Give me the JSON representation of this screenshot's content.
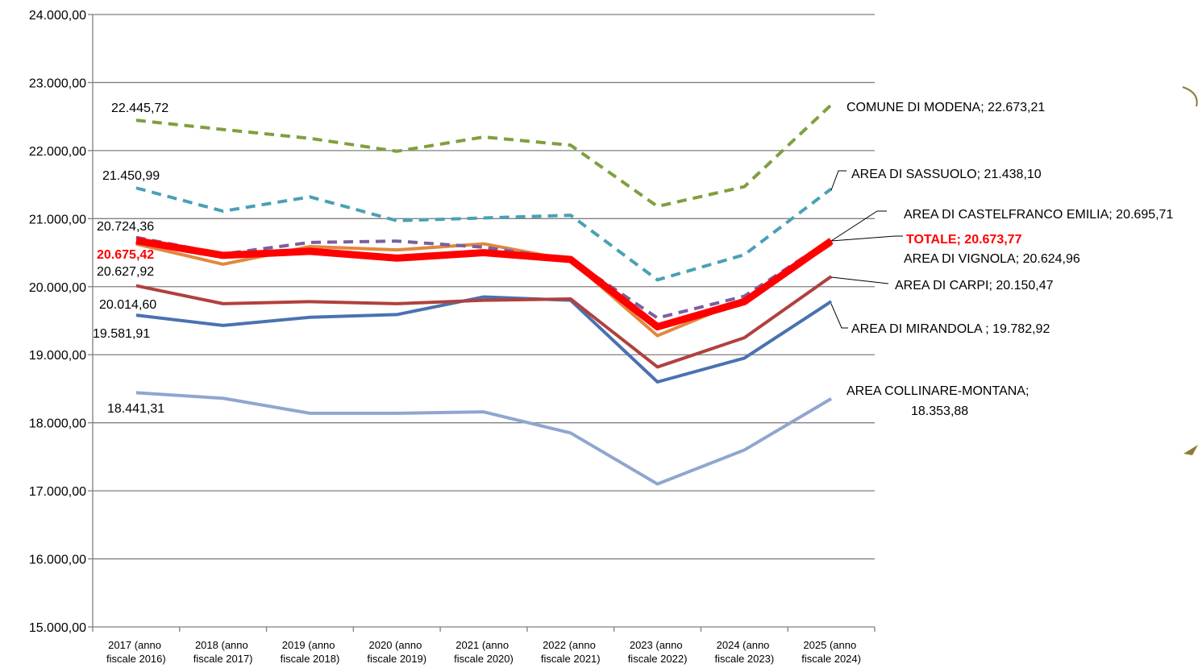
{
  "chart_data": {
    "type": "line",
    "categories": [
      "2017 (anno fiscale 2016)",
      "2018 (anno fiscale 2017)",
      "2019 (anno fiscale 2018)",
      "2020 (anno fiscale 2019)",
      "2021 (anno fiscale 2020)",
      "2022 (anno fiscale 2021)",
      "2023 (anno fiscale 2022)",
      "2024 (anno fiscale 2023)",
      "2025 (anno fiscale 2024)"
    ],
    "ylim": [
      15000,
      24000
    ],
    "yticks": [
      {
        "value": 15000,
        "label": "15.000,00"
      },
      {
        "value": 16000,
        "label": "16.000,00"
      },
      {
        "value": 17000,
        "label": "17.000,00"
      },
      {
        "value": 18000,
        "label": "18.000,00"
      },
      {
        "value": 19000,
        "label": "19.000,00"
      },
      {
        "value": 20000,
        "label": "20.000,00"
      },
      {
        "value": 21000,
        "label": "21.000,00"
      },
      {
        "value": 22000,
        "label": "22.000,00"
      },
      {
        "value": 23000,
        "label": "23.000,00"
      },
      {
        "value": 24000,
        "label": "24.000,00"
      }
    ],
    "grid": true,
    "series": [
      {
        "name": "AREA COLLINARE-MONTANA",
        "color": "#8fa6cf",
        "values": [
          18441.31,
          18360,
          18140,
          18140,
          18160,
          17850,
          17100,
          17600,
          18353.88
        ],
        "value_labels": [
          "18.441,31",
          null,
          null,
          null,
          null,
          null,
          null,
          null,
          "AREA COLLINARE-MONTANA; 18.353,88"
        ]
      },
      {
        "name": "AREA DI MIRANDOLA",
        "color": "#4a72b0",
        "values": [
          19581.91,
          19430,
          19550,
          19590,
          19850,
          19800,
          18600,
          18950,
          19782.92
        ],
        "value_labels": [
          "19.581,91",
          null,
          null,
          null,
          null,
          null,
          null,
          null,
          "AREA DI MIRANDOLA ; 19.782,92"
        ]
      },
      {
        "name": "AREA DI CARPI",
        "color": "#b0413e",
        "values": [
          20014.6,
          19750,
          19780,
          19750,
          19800,
          19820,
          18820,
          19250,
          20150.47
        ],
        "value_labels": [
          "20.014,60",
          null,
          null,
          null,
          null,
          null,
          null,
          null,
          "AREA DI CARPI; 20.150,47"
        ]
      },
      {
        "name": "AREA DI VIGNOLA",
        "color": "#e0883f",
        "values": [
          20627.92,
          20330,
          20590,
          20540,
          20630,
          20390,
          19280,
          19810,
          20624.96
        ],
        "value_labels": [
          "20.627,92",
          null,
          null,
          null,
          null,
          null,
          null,
          null,
          "AREA DI VIGNOLA; 20.624,96"
        ]
      },
      {
        "name": "AREA DI CASTELFRANCO EMILIA",
        "color": "#7a5fa0",
        "values": [
          20724.36,
          20480,
          20650,
          20670,
          20580,
          20400,
          19540,
          19860,
          20695.71
        ],
        "value_labels": [
          "20.724,36",
          null,
          null,
          null,
          null,
          null,
          null,
          null,
          "AREA DI CASTELFRANCO EMILIA; 20.695,71"
        ]
      },
      {
        "name": "AREA DI SASSUOLO",
        "color": "#4aa0b5",
        "values": [
          21450.99,
          21110,
          21320,
          20970,
          21010,
          21050,
          20100,
          20470,
          21438.1
        ],
        "value_labels": [
          "21.450,99",
          null,
          null,
          null,
          null,
          null,
          null,
          null,
          "AREA DI SASSUOLO; 21.438,10"
        ]
      },
      {
        "name": "COMUNE DI MODENA",
        "color": "#7f9f3f",
        "values": [
          22445.72,
          22310,
          22180,
          21990,
          22200,
          22080,
          21180,
          21470,
          22673.21
        ],
        "value_labels": [
          "22.445,72",
          null,
          null,
          null,
          null,
          null,
          null,
          null,
          "COMUNE DI MODENA; 22.673,21"
        ]
      },
      {
        "name": "TOTALE",
        "color": "#ff0000",
        "values": [
          20675.42,
          20460,
          20520,
          20420,
          20500,
          20400,
          19410,
          19780,
          20673.77
        ],
        "value_labels": [
          "20.675,42",
          null,
          null,
          null,
          null,
          null,
          null,
          null,
          "TOTALE; 20.673,77"
        ]
      }
    ]
  }
}
